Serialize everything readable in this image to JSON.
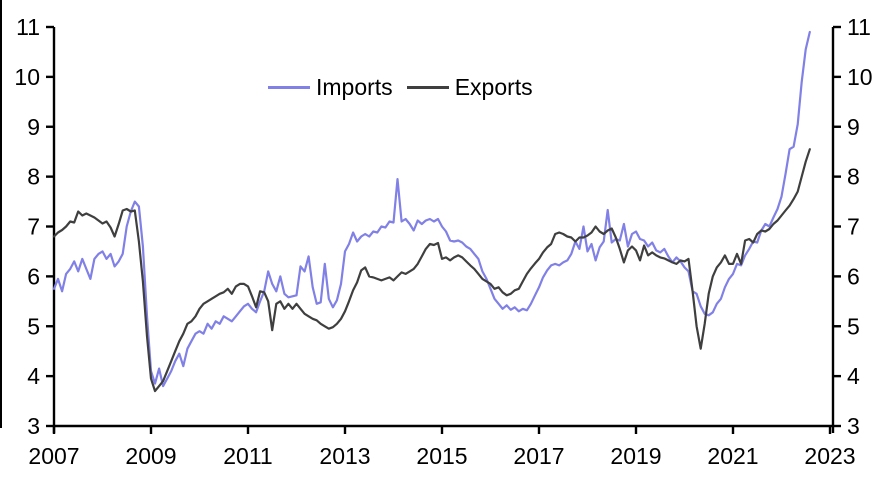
{
  "legend": {
    "items": [
      {
        "label": "Imports",
        "color": "#8080e6"
      },
      {
        "label": "Exports",
        "color": "#3f3f3f"
      }
    ]
  },
  "chart_data": {
    "type": "line",
    "title": "",
    "xlabel": "",
    "ylabel": "",
    "grid": false,
    "legend_position": "top-center",
    "xlim": [
      2007,
      2023
    ],
    "ylim": [
      3,
      11
    ],
    "x_ticks": [
      2007,
      2009,
      2011,
      2013,
      2015,
      2017,
      2019,
      2021,
      2023
    ],
    "y_ticks": [
      3,
      4,
      5,
      6,
      7,
      8,
      9,
      10,
      11
    ],
    "y_axis_sides": "both",
    "x_start": 2007.0,
    "x_step_years": 0.0833333,
    "x_unit": "decimal-year (monthly data)",
    "series": [
      {
        "name": "Imports",
        "color": "#8080e6",
        "values": [
          5.75,
          5.95,
          5.7,
          6.05,
          6.15,
          6.3,
          6.1,
          6.35,
          6.15,
          5.95,
          6.35,
          6.45,
          6.5,
          6.35,
          6.45,
          6.2,
          6.3,
          6.45,
          7.0,
          7.3,
          7.5,
          7.4,
          6.6,
          5.2,
          4.1,
          3.85,
          4.15,
          3.8,
          3.95,
          4.1,
          4.3,
          4.45,
          4.2,
          4.55,
          4.7,
          4.85,
          4.9,
          4.85,
          5.05,
          4.95,
          5.1,
          5.05,
          5.2,
          5.15,
          5.1,
          5.2,
          5.3,
          5.4,
          5.45,
          5.35,
          5.28,
          5.5,
          5.7,
          6.1,
          5.85,
          5.7,
          6.0,
          5.65,
          5.58,
          5.6,
          5.62,
          6.2,
          6.1,
          6.4,
          5.78,
          5.45,
          5.48,
          6.25,
          5.55,
          5.38,
          5.52,
          5.85,
          6.5,
          6.65,
          6.88,
          6.7,
          6.8,
          6.85,
          6.8,
          6.9,
          6.88,
          7.0,
          6.98,
          7.1,
          7.08,
          7.95,
          7.1,
          7.15,
          7.05,
          6.92,
          7.12,
          7.05,
          7.12,
          7.15,
          7.1,
          7.15,
          7.0,
          6.9,
          6.72,
          6.7,
          6.72,
          6.68,
          6.6,
          6.55,
          6.45,
          6.35,
          6.1,
          5.95,
          5.75,
          5.55,
          5.45,
          5.35,
          5.42,
          5.33,
          5.38,
          5.3,
          5.35,
          5.32,
          5.45,
          5.62,
          5.78,
          5.98,
          6.12,
          6.22,
          6.25,
          6.22,
          6.28,
          6.32,
          6.45,
          6.7,
          6.55,
          7.0,
          6.5,
          6.65,
          6.32,
          6.58,
          6.7,
          7.33,
          6.68,
          6.75,
          6.72,
          7.05,
          6.6,
          6.85,
          6.9,
          6.75,
          6.72,
          6.6,
          6.68,
          6.52,
          6.48,
          6.55,
          6.4,
          6.28,
          6.38,
          6.3,
          6.18,
          6.1,
          5.7,
          5.65,
          5.4,
          5.25,
          5.22,
          5.28,
          5.45,
          5.55,
          5.78,
          5.95,
          6.05,
          6.25,
          6.22,
          6.42,
          6.55,
          6.7,
          6.68,
          6.92,
          7.05,
          7.0,
          7.18,
          7.35,
          7.6,
          8.05,
          8.55,
          8.6,
          9.05,
          9.9,
          10.55,
          10.9
        ]
      },
      {
        "name": "Exports",
        "color": "#3f3f3f",
        "values": [
          6.8,
          6.88,
          6.93,
          7.0,
          7.1,
          7.08,
          7.3,
          7.22,
          7.26,
          7.22,
          7.18,
          7.12,
          7.06,
          7.1,
          6.98,
          6.8,
          7.05,
          7.32,
          7.35,
          7.3,
          7.32,
          6.7,
          5.9,
          4.8,
          3.95,
          3.7,
          3.8,
          3.9,
          4.1,
          4.3,
          4.5,
          4.7,
          4.85,
          5.05,
          5.1,
          5.2,
          5.35,
          5.45,
          5.5,
          5.55,
          5.6,
          5.65,
          5.68,
          5.75,
          5.65,
          5.8,
          5.85,
          5.85,
          5.8,
          5.6,
          5.38,
          5.7,
          5.68,
          5.5,
          4.92,
          5.45,
          5.5,
          5.35,
          5.45,
          5.35,
          5.45,
          5.35,
          5.25,
          5.2,
          5.15,
          5.12,
          5.05,
          5.0,
          4.95,
          4.98,
          5.05,
          5.15,
          5.3,
          5.5,
          5.72,
          5.88,
          6.12,
          6.18,
          6.0,
          5.98,
          5.95,
          5.92,
          5.95,
          5.98,
          5.92,
          6.0,
          6.08,
          6.05,
          6.1,
          6.15,
          6.25,
          6.4,
          6.55,
          6.65,
          6.63,
          6.67,
          6.35,
          6.38,
          6.32,
          6.38,
          6.42,
          6.38,
          6.3,
          6.22,
          6.15,
          6.05,
          5.95,
          5.9,
          5.85,
          5.75,
          5.78,
          5.68,
          5.62,
          5.65,
          5.72,
          5.75,
          5.9,
          6.05,
          6.16,
          6.26,
          6.35,
          6.48,
          6.58,
          6.65,
          6.85,
          6.88,
          6.85,
          6.8,
          6.78,
          6.7,
          6.78,
          6.78,
          6.82,
          6.88,
          7.0,
          6.9,
          6.85,
          6.92,
          6.96,
          6.78,
          6.55,
          6.28,
          6.52,
          6.6,
          6.52,
          6.32,
          6.62,
          6.42,
          6.48,
          6.42,
          6.38,
          6.36,
          6.32,
          6.28,
          6.25,
          6.32,
          6.3,
          6.35,
          5.7,
          5.0,
          4.55,
          5.05,
          5.65,
          6.0,
          6.18,
          6.28,
          6.42,
          6.25,
          6.25,
          6.45,
          6.25,
          6.72,
          6.75,
          6.68,
          6.85,
          6.92,
          6.9,
          6.95,
          7.05,
          7.12,
          7.22,
          7.32,
          7.42,
          7.55,
          7.7,
          8.0,
          8.3,
          8.55
        ]
      }
    ]
  }
}
